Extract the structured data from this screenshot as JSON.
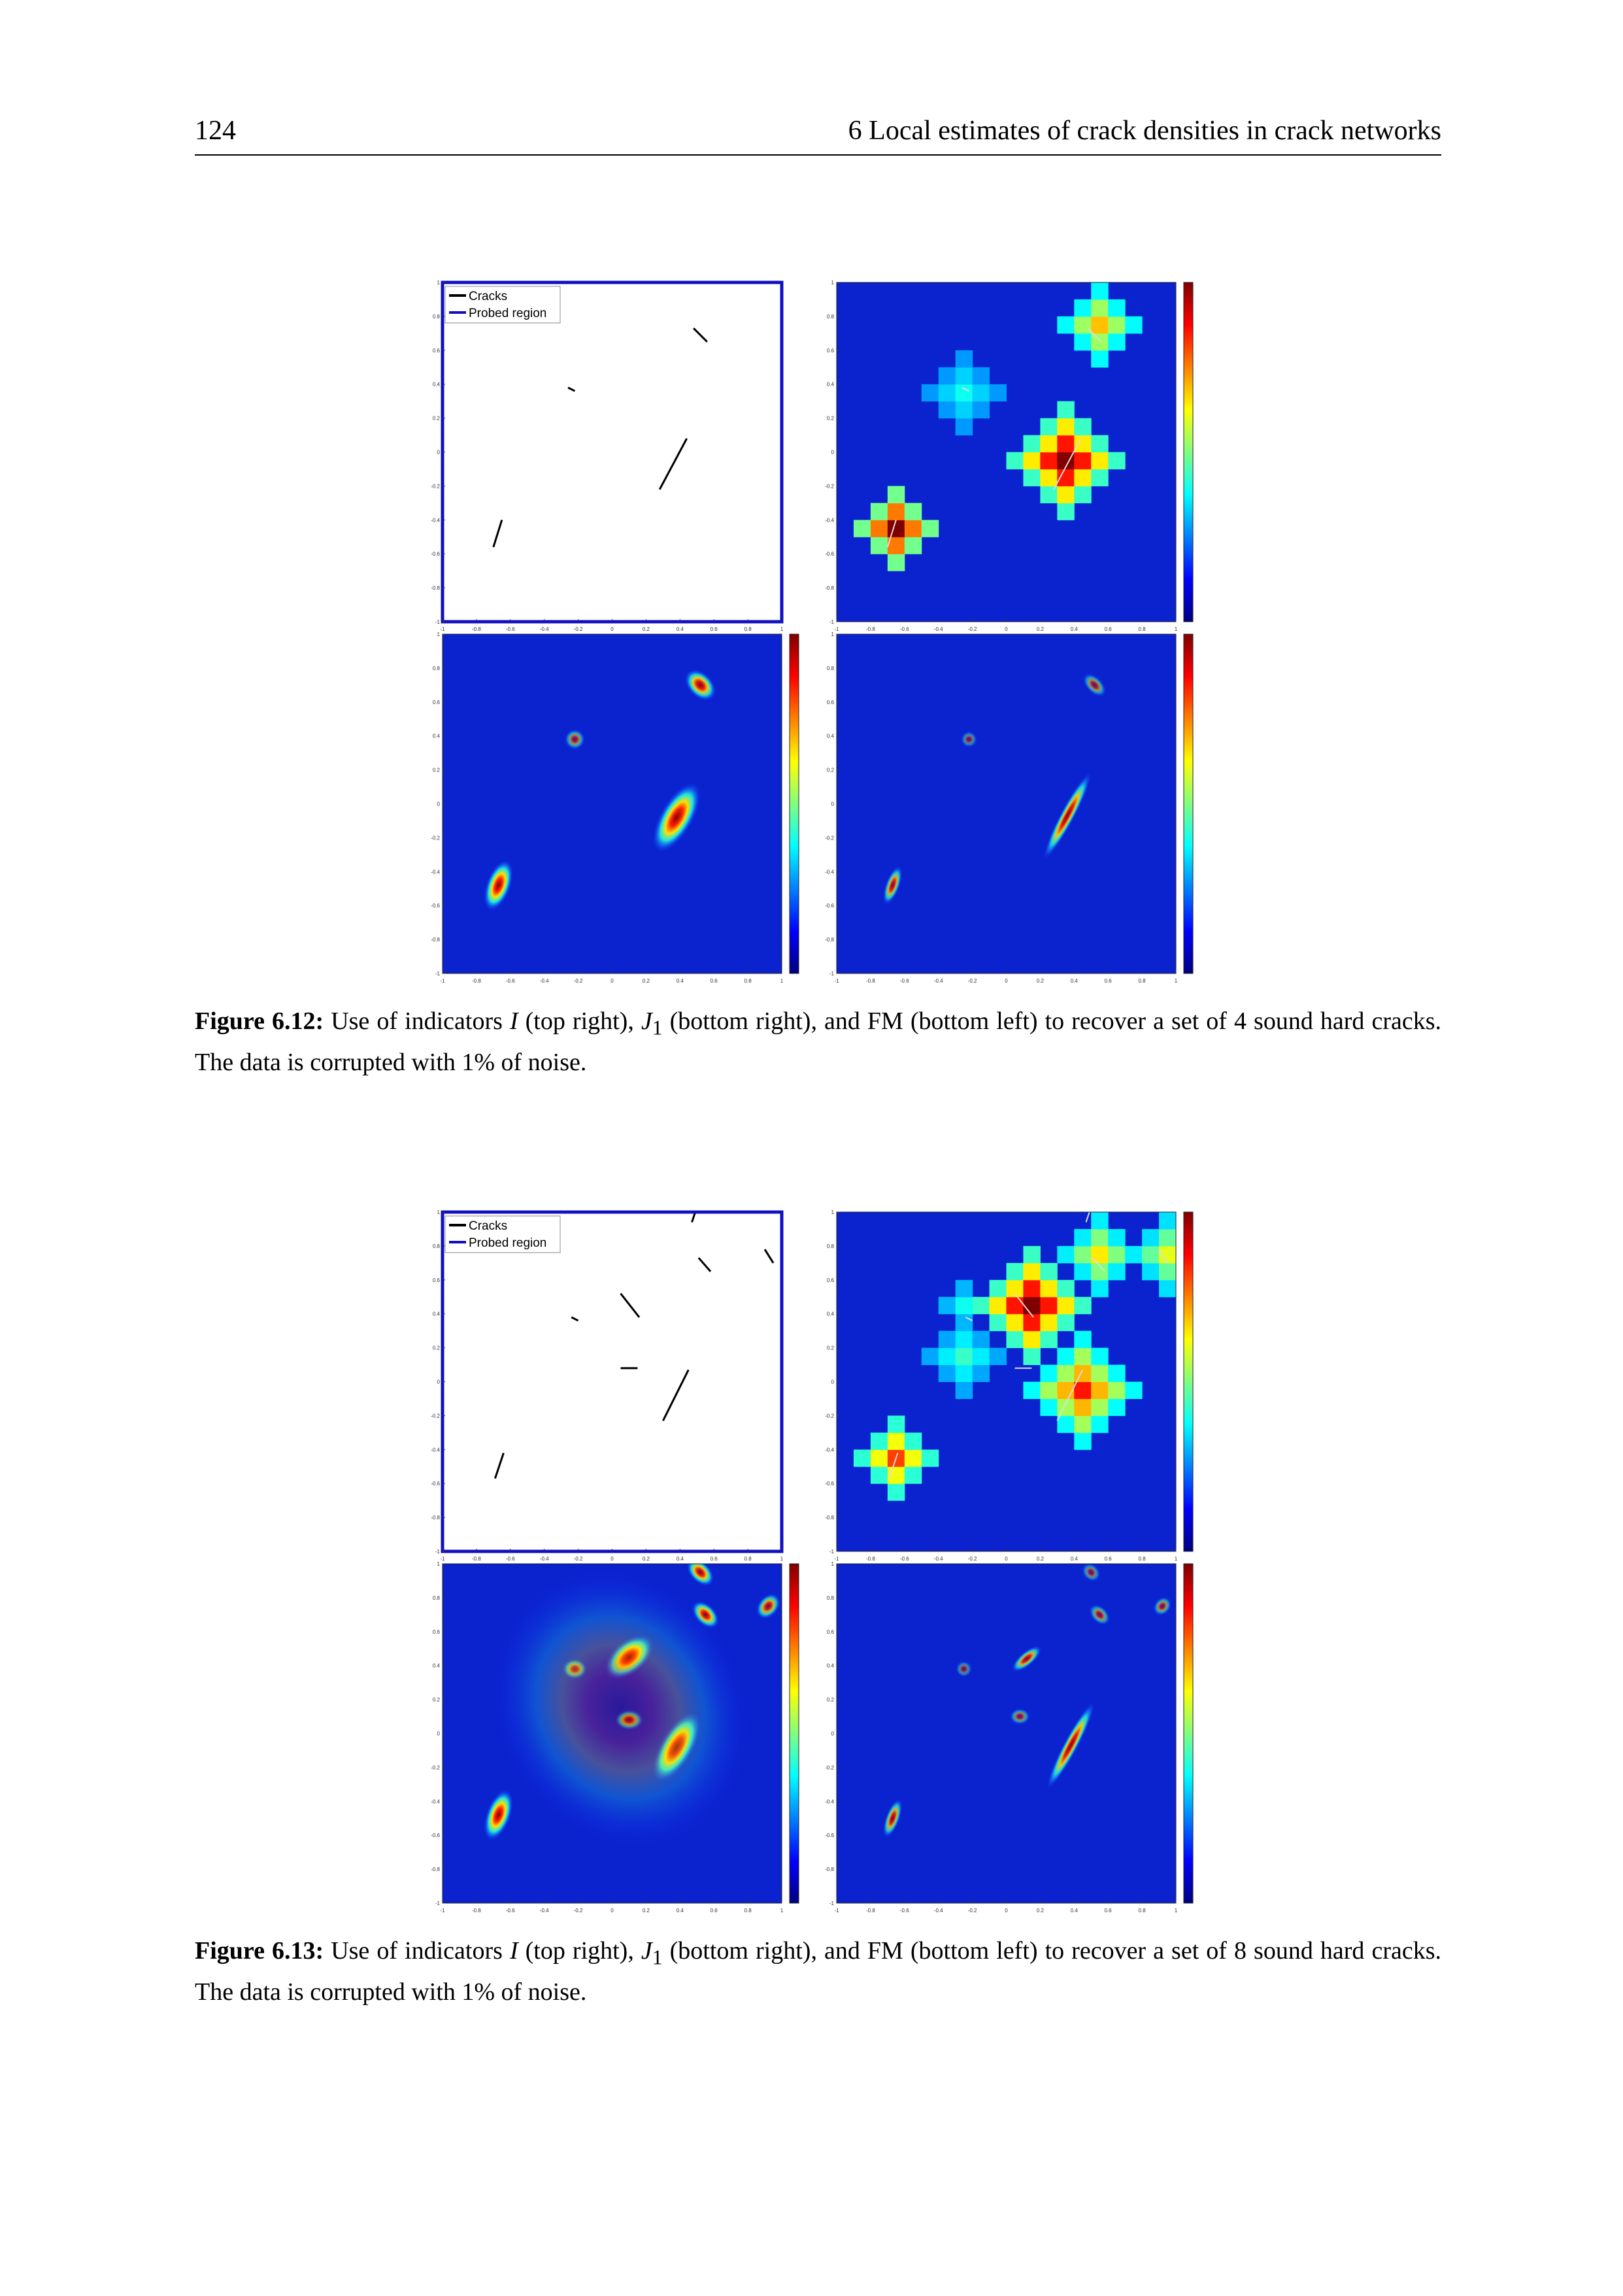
{
  "header": {
    "page": "124",
    "title": "6 Local estimates of crack densities in crack networks"
  },
  "axis_ticks": [
    -1,
    -0.8,
    -0.6,
    -0.4,
    -0.2,
    0,
    0.2,
    0.4,
    0.6,
    0.8,
    1
  ],
  "figures": [
    {
      "legend": [
        "Cracks",
        "Probed region"
      ],
      "caption": {
        "label": "Figure 6.12:",
        "segments": [
          "Use of indicators ",
          "I",
          " (top right), ",
          "J",
          "1",
          " (bottom right), and FM (bottom left) to recover a set of 4 sound hard cracks. The data is corrupted with 1% of noise."
        ]
      }
    },
    {
      "legend": [
        "Cracks",
        "Probed region"
      ],
      "caption": {
        "label": "Figure 6.13:",
        "segments": [
          "Use of indicators ",
          "I",
          " (top right), ",
          "J",
          "1",
          " (bottom right), and FM (bottom left) to recover a set of 8 sound hard cracks. The data is corrupted with 1% of noise."
        ]
      }
    }
  ]
}
